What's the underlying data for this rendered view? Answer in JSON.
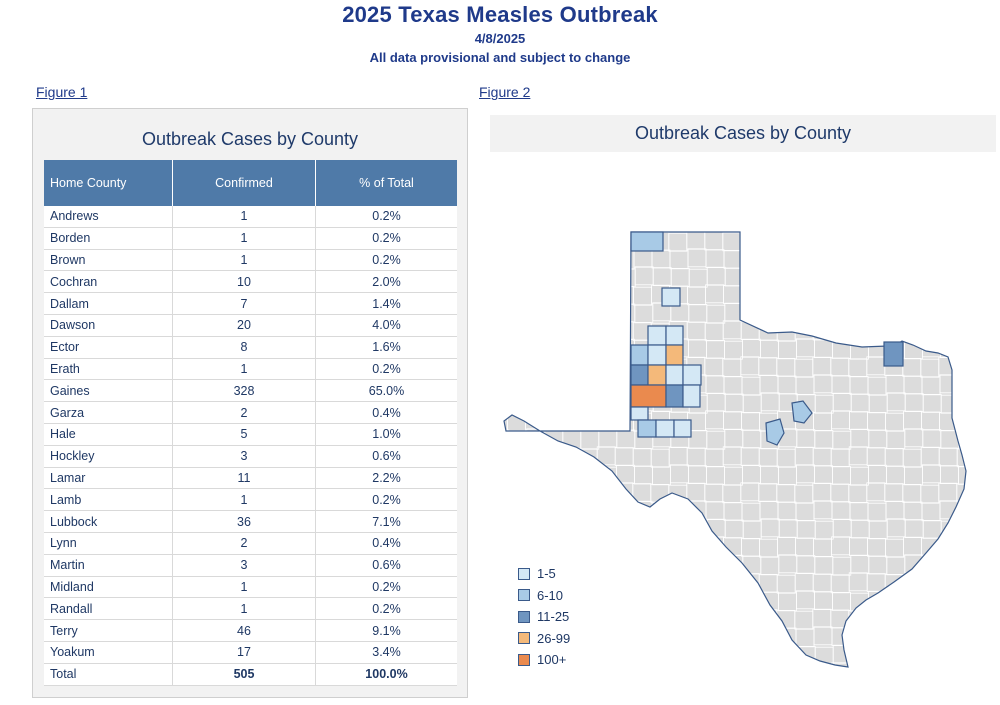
{
  "header": {
    "title": "2025 Texas Measles Outbreak",
    "date": "4/8/2025",
    "disclaimer": "All data provisional and subject to change"
  },
  "figure1": {
    "link_label": "Figure 1",
    "title": "Outbreak Cases by County",
    "columns": [
      "Home County",
      "Confirmed",
      "% of Total"
    ],
    "rows": [
      {
        "county": "Andrews",
        "confirmed": "1",
        "pct": "0.2%"
      },
      {
        "county": "Borden",
        "confirmed": "1",
        "pct": "0.2%"
      },
      {
        "county": "Brown",
        "confirmed": "1",
        "pct": "0.2%"
      },
      {
        "county": "Cochran",
        "confirmed": "10",
        "pct": "2.0%"
      },
      {
        "county": "Dallam",
        "confirmed": "7",
        "pct": "1.4%"
      },
      {
        "county": "Dawson",
        "confirmed": "20",
        "pct": "4.0%"
      },
      {
        "county": "Ector",
        "confirmed": "8",
        "pct": "1.6%"
      },
      {
        "county": "Erath",
        "confirmed": "1",
        "pct": "0.2%"
      },
      {
        "county": "Gaines",
        "confirmed": "328",
        "pct": "65.0%"
      },
      {
        "county": "Garza",
        "confirmed": "2",
        "pct": "0.4%"
      },
      {
        "county": "Hale",
        "confirmed": "5",
        "pct": "1.0%"
      },
      {
        "county": "Hockley",
        "confirmed": "3",
        "pct": "0.6%"
      },
      {
        "county": "Lamar",
        "confirmed": "11",
        "pct": "2.2%"
      },
      {
        "county": "Lamb",
        "confirmed": "1",
        "pct": "0.2%"
      },
      {
        "county": "Lubbock",
        "confirmed": "36",
        "pct": "7.1%"
      },
      {
        "county": "Lynn",
        "confirmed": "2",
        "pct": "0.4%"
      },
      {
        "county": "Martin",
        "confirmed": "3",
        "pct": "0.6%"
      },
      {
        "county": "Midland",
        "confirmed": "1",
        "pct": "0.2%"
      },
      {
        "county": "Randall",
        "confirmed": "1",
        "pct": "0.2%"
      },
      {
        "county": "Terry",
        "confirmed": "46",
        "pct": "9.1%"
      },
      {
        "county": "Yoakum",
        "confirmed": "17",
        "pct": "3.4%"
      }
    ],
    "total": {
      "county": "Total",
      "confirmed": "505",
      "pct": "100.0%"
    }
  },
  "figure2": {
    "link_label": "Figure 2",
    "title": "Outbreak Cases by County",
    "legend": [
      {
        "label": "1-5",
        "color": "#d4e8f5"
      },
      {
        "label": "6-10",
        "color": "#a8cae6"
      },
      {
        "label": "11-25",
        "color": "#6f95c0"
      },
      {
        "label": "26-99",
        "color": "#f4b97a"
      },
      {
        "label": "100+",
        "color": "#ea8a4e"
      }
    ],
    "base_color": "#dcdcdc",
    "border_color": "#ffffff",
    "outline_color": "#3a5a8a"
  }
}
